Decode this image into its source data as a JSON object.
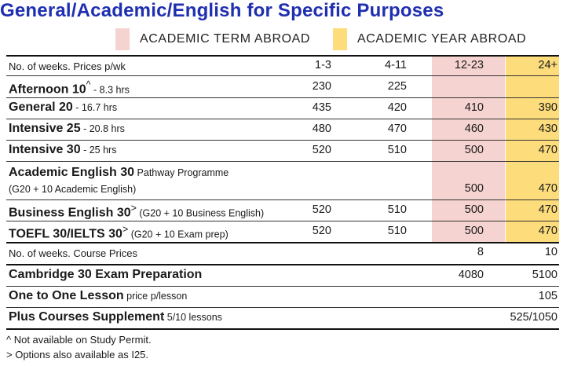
{
  "title": "General/Academic/English for Specific Purposes",
  "legend": {
    "term": {
      "label": "ACADEMIC TERM ABROAD",
      "color": "#f5d3d0"
    },
    "year": {
      "label": "ACADEMIC YEAR ABROAD",
      "color": "#fddc7c"
    }
  },
  "header": {
    "label": "No. of weeks. Prices p/wk",
    "cols": [
      "1-3",
      "4-11",
      "12-23",
      "24+"
    ]
  },
  "rows": [
    {
      "name": "Afternoon 10",
      "mark": "^",
      "sub": " - 8.3 hrs",
      "values": [
        "230",
        "225",
        "",
        ""
      ]
    },
    {
      "name": "General 20",
      "mark": "",
      "sub": " - 16.7 hrs",
      "values": [
        "435",
        "420",
        "410",
        "390"
      ]
    },
    {
      "name": "Intensive 25",
      "mark": "",
      "sub": " - 20.8 hrs",
      "values": [
        "480",
        "470",
        "460",
        "430"
      ]
    },
    {
      "name": "Intensive 30",
      "mark": "",
      "sub": " - 25 hrs",
      "values": [
        "520",
        "510",
        "500",
        "470"
      ]
    },
    {
      "name": "Academic English 30",
      "mark": "",
      "sub": " Pathway Programme",
      "sub2": "(G20 + 10 Academic English)",
      "values": [
        "",
        "",
        "500",
        "470"
      ]
    },
    {
      "name": "Business English 30",
      "mark": ">",
      "sub": " (G20 + 10 Business English)",
      "values": [
        "520",
        "510",
        "500",
        "470"
      ]
    },
    {
      "name": "TOEFL 30/IELTS 30",
      "mark": ">",
      "sub": " (G20 + 10 Exam prep)",
      "values": [
        "520",
        "510",
        "500",
        "470"
      ]
    }
  ],
  "course_header": {
    "label": "No. of weeks. Course Prices",
    "cols": [
      "8",
      "10"
    ]
  },
  "course_rows": [
    {
      "name": "Cambridge 30 Exam Preparation",
      "sub": "",
      "values": [
        "4080",
        "5100"
      ]
    },
    {
      "name": "One to One Lesson",
      "sub": " price p/lesson",
      "values": [
        "",
        "105"
      ]
    },
    {
      "name": "Plus Courses Supplement",
      "sub": " 5/10 lessons",
      "values": [
        "",
        "525/1050"
      ]
    }
  ],
  "notes": [
    "^ Not available on Study Permit.",
    "> Options also available as I25."
  ]
}
